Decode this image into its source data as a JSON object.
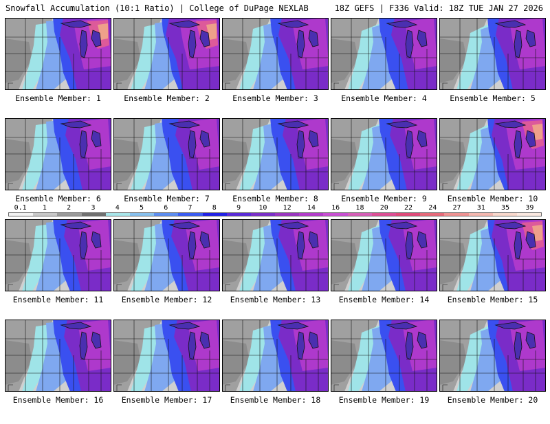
{
  "header": {
    "left": "Snowfall Accumulation (10:1 Ratio) | College of DuPage NEXLAB",
    "right": "18Z GEFS | F336 Valid: 18Z TUE JAN 27 2026"
  },
  "members": [
    {
      "label": "Ensemble Member: 1",
      "intensity": 0.75
    },
    {
      "label": "Ensemble Member: 2",
      "intensity": 0.85
    },
    {
      "label": "Ensemble Member: 3",
      "intensity": 0.7
    },
    {
      "label": "Ensemble Member: 4",
      "intensity": 0.55
    },
    {
      "label": "Ensemble Member: 5",
      "intensity": 0.7
    },
    {
      "label": "Ensemble Member: 6",
      "intensity": 0.55
    },
    {
      "label": "Ensemble Member: 7",
      "intensity": 0.5
    },
    {
      "label": "Ensemble Member: 8",
      "intensity": 0.55
    },
    {
      "label": "Ensemble Member: 9",
      "intensity": 0.6
    },
    {
      "label": "Ensemble Member: 10",
      "intensity": 0.85
    },
    {
      "label": "Ensemble Member: 11",
      "intensity": 0.6
    },
    {
      "label": "Ensemble Member: 12",
      "intensity": 0.65
    },
    {
      "label": "Ensemble Member: 13",
      "intensity": 0.7
    },
    {
      "label": "Ensemble Member: 14",
      "intensity": 0.65
    },
    {
      "label": "Ensemble Member: 15",
      "intensity": 0.85
    },
    {
      "label": "Ensemble Member: 16",
      "intensity": 0.6
    },
    {
      "label": "Ensemble Member: 17",
      "intensity": 0.55
    },
    {
      "label": "Ensemble Member: 18",
      "intensity": 0.7
    },
    {
      "label": "Ensemble Member: 19",
      "intensity": 0.65
    },
    {
      "label": "Ensemble Member: 20",
      "intensity": 0.7
    }
  ],
  "legend": {
    "ticks": [
      "0.1",
      "1",
      "2",
      "3",
      "4",
      "5",
      "6",
      "7",
      "8",
      "9",
      "10",
      "12",
      "14",
      "16",
      "18",
      "20",
      "22",
      "24",
      "27",
      "31",
      "35",
      "39"
    ],
    "colors": [
      "#f2f2f2",
      "#c8c8c8",
      "#9a9a9a",
      "#707070",
      "#a8e6ea",
      "#87c0ee",
      "#5c8df0",
      "#3a5cf2",
      "#2020e6",
      "#5a2ad8",
      "#7a2fc8",
      "#9a36c0",
      "#b33ccb",
      "#c84fd2",
      "#d65fb8",
      "#dd4f95",
      "#e04a7a",
      "#e66a7a",
      "#ee9292",
      "#f4b8b0",
      "#f8d8cc",
      "#fbe9e1"
    ]
  },
  "map_colors": {
    "ocean_bg": "#e4e4e4",
    "light_gray": "#d0d0d0",
    "mid_gray": "#a0a0a0",
    "dark_gray": "#777777",
    "cyan": "#9fe4e8",
    "light_blue": "#7fa8f0",
    "blue": "#3a50f0",
    "deep_blue": "#2a22e0",
    "purple": "#7a2cc8",
    "magenta": "#b73ccc",
    "pink": "#dd5a9a",
    "peach": "#eea08a",
    "border": "#111111",
    "lake": "#4a2fb0"
  }
}
